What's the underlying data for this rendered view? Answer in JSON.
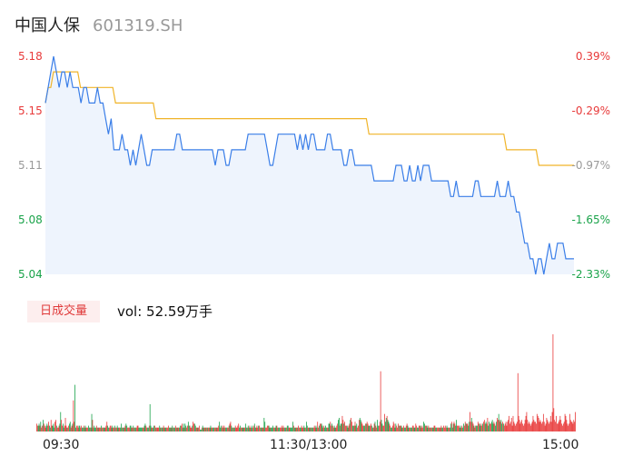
{
  "header": {
    "name": "中国人保",
    "code": "601319.SH"
  },
  "colors": {
    "up": "#e83a3a",
    "down": "#1aa34a",
    "flat": "#999999",
    "price_line": "#3a7ee8",
    "avg_line": "#f0b429",
    "area_fill": "#eef4fd"
  },
  "price_axis": [
    "5.18",
    "5.15",
    "5.11",
    "5.08",
    "5.04"
  ],
  "pct_axis": [
    "0.39%",
    "-0.29%",
    "-0.97%",
    "-1.65%",
    "-2.33%"
  ],
  "volume": {
    "tag": "日成交量",
    "label": "vol: 52.59万手"
  },
  "time_axis": [
    "09:30",
    "11:30/13:00",
    "15:00"
  ],
  "chart_data": {
    "type": "line",
    "ylim": [
      5.04,
      5.18
    ],
    "pct_range": [
      "0.39%",
      "-2.33%"
    ],
    "series": [
      {
        "values": [
          5.15,
          5.16,
          5.17,
          5.18,
          5.17,
          5.16,
          5.17,
          5.17,
          5.16,
          5.17,
          5.16,
          5.16,
          5.16,
          5.15,
          5.16,
          5.16,
          5.15,
          5.15,
          5.15,
          5.16,
          5.15,
          5.15,
          5.14,
          5.13,
          5.14,
          5.12,
          5.12,
          5.12,
          5.13,
          5.12,
          5.12,
          5.11,
          5.12,
          5.11,
          5.12,
          5.13,
          5.12,
          5.11,
          5.11,
          5.12,
          5.12,
          5.12,
          5.12,
          5.12,
          5.12,
          5.12,
          5.12,
          5.12,
          5.13,
          5.13,
          5.12,
          5.12,
          5.12,
          5.12,
          5.12,
          5.12,
          5.12,
          5.12,
          5.12,
          5.12,
          5.12,
          5.12,
          5.11,
          5.12,
          5.12,
          5.12,
          5.11,
          5.11,
          5.12,
          5.12,
          5.12,
          5.12,
          5.12,
          5.12,
          5.13,
          5.13,
          5.13,
          5.13,
          5.13,
          5.13,
          5.13,
          5.12,
          5.11,
          5.11,
          5.12,
          5.13,
          5.13,
          5.13,
          5.13,
          5.13,
          5.13,
          5.13,
          5.12,
          5.13,
          5.12,
          5.13,
          5.12,
          5.13,
          5.13,
          5.12,
          5.12,
          5.12,
          5.12,
          5.13,
          5.13,
          5.12,
          5.12,
          5.12,
          5.12,
          5.11,
          5.11,
          5.12,
          5.12,
          5.11,
          5.11,
          5.11,
          5.11,
          5.11,
          5.11,
          5.11,
          5.1,
          5.1,
          5.1,
          5.1,
          5.1,
          5.1,
          5.1,
          5.1,
          5.11,
          5.11,
          5.11,
          5.1,
          5.1,
          5.11,
          5.1,
          5.1,
          5.11,
          5.1,
          5.11,
          5.11,
          5.11,
          5.1,
          5.1,
          5.1,
          5.1,
          5.1,
          5.1,
          5.1,
          5.09,
          5.09,
          5.1,
          5.09,
          5.09,
          5.09,
          5.09,
          5.09,
          5.09,
          5.1,
          5.1,
          5.09,
          5.09,
          5.09,
          5.09,
          5.09,
          5.09,
          5.1,
          5.09,
          5.09,
          5.09,
          5.1,
          5.09,
          5.09,
          5.08,
          5.08,
          5.07,
          5.06,
          5.06,
          5.05,
          5.05,
          5.04,
          5.05,
          5.05,
          5.04,
          5.05,
          5.06,
          5.05,
          5.05,
          5.06,
          5.06,
          5.06,
          5.05,
          5.05,
          5.05,
          5.05
        ]
      },
      {
        "values": [
          5.15,
          5.16,
          5.16,
          5.17,
          5.17,
          5.17,
          5.17,
          5.17,
          5.17,
          5.17,
          5.17,
          5.17,
          5.17,
          5.16,
          5.16,
          5.16,
          5.16,
          5.16,
          5.16,
          5.16,
          5.16,
          5.16,
          5.16,
          5.16,
          5.16,
          5.16,
          5.15,
          5.15,
          5.15,
          5.15,
          5.15,
          5.15,
          5.15,
          5.15,
          5.15,
          5.15,
          5.15,
          5.15,
          5.15,
          5.15,
          5.15,
          5.14,
          5.14,
          5.14,
          5.14,
          5.14,
          5.14,
          5.14,
          5.14,
          5.14,
          5.14,
          5.14,
          5.14,
          5.14,
          5.14,
          5.14,
          5.14,
          5.14,
          5.14,
          5.14,
          5.14,
          5.14,
          5.14,
          5.14,
          5.14,
          5.14,
          5.14,
          5.14,
          5.14,
          5.14,
          5.14,
          5.14,
          5.14,
          5.14,
          5.14,
          5.14,
          5.14,
          5.14,
          5.14,
          5.14,
          5.14,
          5.14,
          5.14,
          5.14,
          5.14,
          5.14,
          5.14,
          5.14,
          5.14,
          5.14,
          5.14,
          5.14,
          5.14,
          5.14,
          5.14,
          5.14,
          5.14,
          5.14,
          5.14,
          5.14,
          5.14,
          5.14,
          5.14,
          5.14,
          5.14,
          5.14,
          5.14,
          5.14,
          5.14,
          5.14,
          5.14,
          5.14,
          5.14,
          5.14,
          5.14,
          5.14,
          5.14,
          5.14,
          5.14,
          5.14,
          5.13,
          5.13,
          5.13,
          5.13,
          5.13,
          5.13,
          5.13,
          5.13,
          5.13,
          5.13,
          5.13,
          5.13,
          5.13,
          5.13,
          5.13,
          5.13,
          5.13,
          5.13,
          5.13,
          5.13,
          5.13,
          5.13,
          5.13,
          5.13,
          5.13,
          5.13,
          5.13,
          5.13,
          5.13,
          5.13,
          5.13,
          5.13,
          5.13,
          5.13,
          5.13,
          5.13,
          5.13,
          5.13,
          5.13,
          5.13,
          5.13,
          5.13,
          5.13,
          5.13,
          5.13,
          5.13,
          5.13,
          5.13,
          5.13,
          5.13,
          5.13,
          5.12,
          5.12,
          5.12,
          5.12,
          5.12,
          5.12,
          5.12,
          5.12,
          5.12,
          5.12,
          5.12,
          5.12,
          5.11,
          5.11,
          5.11,
          5.11,
          5.11,
          5.11,
          5.11,
          5.11,
          5.11,
          5.11,
          5.11,
          5.11,
          5.11,
          5.11
        ]
      }
    ],
    "volume_values": [
      4,
      3,
      3,
      4,
      3,
      5,
      2,
      3,
      6,
      4,
      3,
      2,
      3,
      4,
      3,
      5,
      3,
      2,
      6,
      3,
      3,
      4,
      2,
      5,
      6,
      3,
      2,
      2,
      3,
      4,
      10,
      6,
      3,
      4,
      2,
      3,
      7,
      3,
      2,
      2,
      3,
      4,
      5,
      2,
      3,
      4,
      16,
      5,
      24,
      2,
      3,
      3,
      2,
      3,
      3,
      2,
      3,
      2,
      2,
      3,
      2,
      3,
      2,
      2,
      2,
      3,
      2,
      2,
      2,
      9,
      6,
      2,
      3,
      2,
      2,
      3,
      2,
      2,
      2,
      2,
      2,
      3,
      2,
      2,
      2,
      2,
      2,
      3,
      5,
      3,
      2,
      2,
      3,
      3,
      2,
      3,
      2,
      2,
      3,
      2,
      2,
      3,
      2,
      2,
      2,
      2,
      4,
      2,
      2,
      2,
      2,
      3,
      4,
      3,
      2,
      2,
      2,
      3,
      3,
      2,
      2,
      3,
      2,
      2,
      2,
      2,
      3,
      3,
      2,
      2,
      2,
      2,
      2,
      2,
      2,
      3,
      4,
      3,
      2,
      2,
      2,
      3,
      14,
      3,
      2,
      2,
      2,
      3,
      3,
      2,
      2,
      2,
      2,
      2,
      3,
      2,
      2,
      2,
      2,
      3,
      2,
      2,
      2,
      2,
      2,
      3,
      2,
      2,
      2,
      2,
      3,
      2,
      2,
      2,
      3,
      2,
      2,
      2,
      2,
      2,
      3,
      3,
      4,
      2,
      4,
      2,
      4,
      3,
      2,
      3,
      5,
      3,
      3,
      2,
      2,
      3,
      5,
      4,
      4,
      3,
      2,
      2,
      2,
      2,
      3,
      1,
      1,
      2,
      3,
      2,
      2,
      2,
      2,
      2,
      2,
      2,
      2,
      2,
      3,
      2,
      2,
      2,
      2,
      2,
      2,
      2,
      2,
      2,
      3,
      5,
      2,
      3,
      2,
      3,
      2,
      3,
      2,
      2,
      2,
      2,
      2,
      3,
      4,
      5,
      3,
      2,
      2,
      2,
      2,
      3,
      2,
      2,
      3,
      4,
      2,
      3,
      2,
      2,
      2,
      2,
      2,
      2,
      4,
      2,
      2,
      3,
      2,
      3,
      2,
      2,
      3,
      2,
      3,
      4,
      2,
      2,
      3,
      2,
      3,
      3,
      2,
      2,
      2,
      2,
      2,
      7,
      5,
      2,
      2,
      3,
      3,
      3,
      2,
      2,
      2,
      2,
      3,
      2,
      2,
      2,
      3,
      3,
      2,
      2,
      2,
      2,
      2,
      3,
      2,
      3,
      2,
      2,
      2,
      2,
      3,
      3,
      2,
      2,
      2,
      2,
      2,
      5,
      3,
      2,
      2,
      2,
      2,
      2,
      3,
      2,
      2,
      2,
      3,
      2,
      2,
      3,
      2,
      2,
      5,
      3,
      2,
      2,
      2,
      2,
      2,
      2,
      2,
      2,
      3,
      2,
      3,
      2,
      5,
      2,
      3,
      4,
      4,
      4,
      3,
      2,
      3,
      2,
      3,
      2,
      2,
      2,
      4,
      4,
      5,
      3,
      4,
      3,
      2,
      3,
      2,
      2,
      3,
      4,
      6,
      7,
      3,
      4,
      4,
      8,
      6,
      4,
      5,
      3,
      3,
      3,
      2,
      3,
      4,
      6,
      7,
      5,
      3,
      3,
      3,
      5,
      3,
      4,
      2,
      3,
      6,
      7,
      6,
      5,
      4,
      3,
      3,
      3,
      4,
      4,
      5,
      4,
      3,
      3,
      3,
      4,
      3,
      2,
      2,
      4,
      5,
      3,
      2,
      6,
      3,
      3,
      5,
      31,
      6,
      4,
      3,
      3,
      9,
      5,
      7,
      8,
      6,
      5,
      4,
      3,
      2,
      2,
      3,
      5,
      4,
      2,
      4,
      3,
      2,
      4,
      3,
      3,
      3,
      3,
      2,
      2,
      3,
      2,
      2,
      3,
      4,
      3,
      2,
      2,
      2,
      2,
      2,
      3,
      3,
      2,
      2,
      4,
      3,
      2,
      2,
      3,
      3,
      3,
      2,
      3,
      2,
      5,
      4,
      3,
      3,
      3,
      2,
      3,
      2,
      2,
      2,
      2,
      2,
      2,
      3,
      3,
      2,
      2,
      2,
      2,
      2,
      2,
      2,
      3,
      2,
      2,
      3,
      2,
      3,
      2,
      3,
      2,
      2,
      2,
      2,
      4,
      5,
      2,
      4,
      5,
      4,
      3,
      6,
      3,
      3,
      3,
      2,
      3,
      2,
      3,
      2,
      4,
      3,
      5,
      4,
      4,
      4,
      3,
      5,
      10,
      5,
      7,
      5,
      4,
      3,
      2,
      3,
      3,
      3,
      5,
      4,
      4,
      3,
      4,
      3,
      4,
      5,
      6,
      4,
      5,
      4,
      7,
      3,
      5,
      4,
      4,
      5,
      6,
      4,
      5,
      4,
      3,
      5,
      7,
      6,
      9,
      6,
      5,
      6,
      4,
      5,
      4,
      3,
      4,
      5,
      3,
      5,
      6,
      8,
      4,
      5,
      7,
      3,
      8,
      5,
      4,
      3,
      4,
      5,
      30,
      8,
      6,
      4,
      5,
      6,
      4,
      3,
      4,
      6,
      8,
      10,
      6,
      4,
      5,
      4,
      3,
      4,
      5,
      8,
      6,
      5,
      5,
      4,
      9,
      8,
      7,
      5,
      6,
      5,
      4,
      5,
      9,
      5,
      3,
      4,
      7,
      6,
      5,
      4,
      5,
      8,
      5,
      10,
      50,
      12,
      6,
      5,
      8,
      4,
      4,
      5,
      6,
      8,
      6,
      4,
      3,
      4,
      5,
      9,
      8,
      6,
      4,
      3,
      4,
      9,
      6,
      5,
      5,
      4,
      6,
      5,
      10
    ],
    "volume_dirs": "uudduduuduuudduudduuddduuduuudduudduuuduudduuduudduuudduuddudduuuddudduuddduuduuuduudduuudduuudduuduudduuddudduudduuudduududduuuddddduudduuddudduudduduuuuddudduudduuudduddudduuduudduuddudduudduuuduudduuduuddudduududuudduudduuduuuddduuduudduuduuddudduuuuudduudduuddudduudduudduuuduudduudduuuudduddduudduudduuuduuddudduuddddudduuduudduuuddudduuddudduuudduuduudduuddduudduuduudduuuddudduuduuudduuduudduudduuudduuudduduudduudduuduudduuudduuuddudduudduuudduuuduudduudduudduudduudduudduuduuudduudduuduudduudduuuduudduuuudduuddudduudduuudduudduuduudduuduuduudduudduuduudduudduuddduudduuduuddud"
  }
}
